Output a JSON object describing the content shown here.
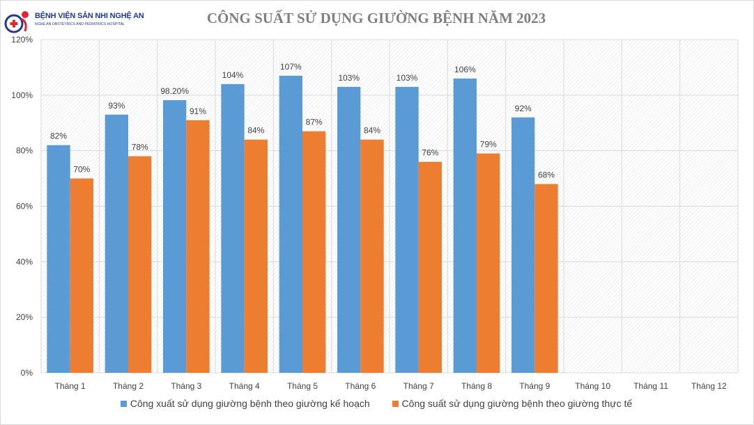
{
  "logo": {
    "name": "BỆNH VIỆN SẢN NHI NGHỆ AN",
    "subname": "NGHE AN OBSTETRICS AND PEDIATRICS HOSPITAL",
    "icon": "hospital-logo-icon"
  },
  "colors": {
    "series1": "#5b9bd5",
    "series2": "#ed7d31",
    "grid": "#d9d9d9",
    "text": "#404040"
  },
  "chart_data": {
    "type": "bar",
    "title": "CÔNG SUẤT SỬ DỤNG GIƯỜNG BỆNH NĂM 2023",
    "xlabel": "",
    "ylabel": "",
    "ylim": [
      0,
      1.2
    ],
    "yticks": [
      0,
      0.2,
      0.4,
      0.6,
      0.8,
      1.0,
      1.2
    ],
    "ytick_labels": [
      "0%",
      "20%",
      "40%",
      "60%",
      "80%",
      "100%",
      "120%"
    ],
    "grid": true,
    "legend_position": "bottom",
    "categories": [
      "Tháng 1",
      "Tháng 2",
      "Tháng 3",
      "Tháng 4",
      "Tháng 5",
      "Tháng 6",
      "Tháng 7",
      "Tháng 8",
      "Tháng 9",
      "Tháng 10",
      "Tháng 11",
      "Tháng 12"
    ],
    "series": [
      {
        "name": "Công xuất sử dụng giường bệnh theo giường kế hoạch",
        "values": [
          0.82,
          0.93,
          0.982,
          1.04,
          1.07,
          1.03,
          1.03,
          1.06,
          0.92,
          null,
          null,
          null
        ],
        "labels": [
          "82%",
          "93%",
          "98.20%",
          "104%",
          "107%",
          "103%",
          "103%",
          "106%",
          "92%",
          "",
          "",
          ""
        ]
      },
      {
        "name": "Công suất sử dụng giường bệnh theo giường thực tế",
        "values": [
          0.7,
          0.78,
          0.91,
          0.84,
          0.87,
          0.84,
          0.76,
          0.79,
          0.68,
          null,
          null,
          null
        ],
        "labels": [
          "70%",
          "78%",
          "91%",
          "84%",
          "87%",
          "84%",
          "76%",
          "79%",
          "68%",
          "",
          "",
          ""
        ]
      }
    ]
  }
}
